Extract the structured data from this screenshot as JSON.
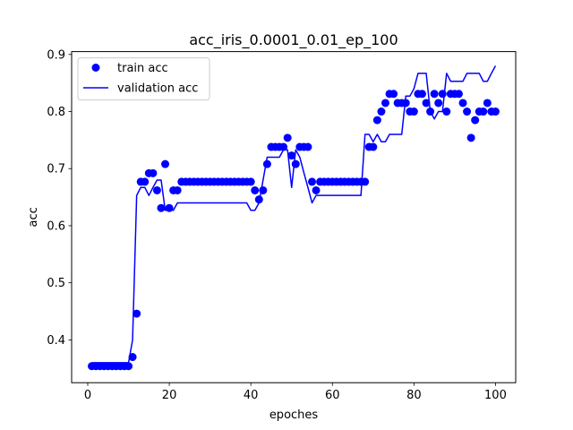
{
  "chart_data": {
    "type": "line",
    "title": "acc_iris_0.0001_0.01_ep_100",
    "xlabel": "epoches",
    "ylabel": "acc",
    "xlim": [
      -3.95,
      104.95
    ],
    "ylim": [
      0.325,
      0.905
    ],
    "xticks": [
      0,
      20,
      40,
      60,
      80,
      100
    ],
    "yticks": [
      0.4,
      0.5,
      0.6,
      0.7,
      0.8,
      0.9
    ],
    "xtick_labels": [
      "0",
      "20",
      "40",
      "60",
      "80",
      "100"
    ],
    "ytick_labels": [
      "0.4",
      "0.5",
      "0.6",
      "0.7",
      "0.8",
      "0.9"
    ],
    "grid": false,
    "legend_position": "top-left",
    "x": [
      1,
      2,
      3,
      4,
      5,
      6,
      7,
      8,
      9,
      10,
      11,
      12,
      13,
      14,
      15,
      16,
      17,
      18,
      19,
      20,
      21,
      22,
      23,
      24,
      25,
      26,
      27,
      28,
      29,
      30,
      31,
      32,
      33,
      34,
      35,
      36,
      37,
      38,
      39,
      40,
      41,
      42,
      43,
      44,
      45,
      46,
      47,
      48,
      49,
      50,
      51,
      52,
      53,
      54,
      55,
      56,
      57,
      58,
      59,
      60,
      61,
      62,
      63,
      64,
      65,
      66,
      67,
      68,
      69,
      70,
      71,
      72,
      73,
      74,
      75,
      76,
      77,
      78,
      79,
      80,
      81,
      82,
      83,
      84,
      85,
      86,
      87,
      88,
      89,
      90,
      91,
      92,
      93,
      94,
      95,
      96,
      97,
      98,
      99,
      100
    ],
    "series": [
      {
        "name": "train acc",
        "style": "markers",
        "color": "#0000ff",
        "values": [
          0.354,
          0.354,
          0.354,
          0.354,
          0.354,
          0.354,
          0.354,
          0.354,
          0.354,
          0.354,
          0.37,
          0.446,
          0.677,
          0.677,
          0.692,
          0.692,
          0.662,
          0.631,
          0.708,
          0.631,
          0.662,
          0.662,
          0.677,
          0.677,
          0.677,
          0.677,
          0.677,
          0.677,
          0.677,
          0.677,
          0.677,
          0.677,
          0.677,
          0.677,
          0.677,
          0.677,
          0.677,
          0.677,
          0.677,
          0.677,
          0.662,
          0.646,
          0.662,
          0.708,
          0.738,
          0.738,
          0.738,
          0.738,
          0.754,
          0.723,
          0.708,
          0.738,
          0.738,
          0.738,
          0.677,
          0.662,
          0.677,
          0.677,
          0.677,
          0.677,
          0.677,
          0.677,
          0.677,
          0.677,
          0.677,
          0.677,
          0.677,
          0.677,
          0.738,
          0.738,
          0.785,
          0.8,
          0.815,
          0.831,
          0.831,
          0.815,
          0.815,
          0.815,
          0.8,
          0.8,
          0.831,
          0.831,
          0.815,
          0.8,
          0.831,
          0.815,
          0.831,
          0.8,
          0.831,
          0.831,
          0.831,
          0.815,
          0.8,
          0.754,
          0.785,
          0.8,
          0.8,
          0.815,
          0.8,
          0.8
        ]
      },
      {
        "name": "validation acc",
        "style": "line",
        "color": "#0000ff",
        "values": [
          0.36,
          0.36,
          0.36,
          0.36,
          0.36,
          0.36,
          0.36,
          0.36,
          0.36,
          0.36,
          0.4,
          0.653,
          0.667,
          0.667,
          0.653,
          0.667,
          0.68,
          0.68,
          0.627,
          0.627,
          0.627,
          0.64,
          0.64,
          0.64,
          0.64,
          0.64,
          0.64,
          0.64,
          0.64,
          0.64,
          0.64,
          0.64,
          0.64,
          0.64,
          0.64,
          0.64,
          0.64,
          0.64,
          0.64,
          0.627,
          0.627,
          0.64,
          0.68,
          0.72,
          0.72,
          0.72,
          0.72,
          0.733,
          0.733,
          0.667,
          0.733,
          0.72,
          0.693,
          0.667,
          0.64,
          0.653,
          0.653,
          0.653,
          0.653,
          0.653,
          0.653,
          0.653,
          0.653,
          0.653,
          0.653,
          0.653,
          0.653,
          0.76,
          0.76,
          0.747,
          0.76,
          0.747,
          0.747,
          0.76,
          0.76,
          0.76,
          0.76,
          0.827,
          0.827,
          0.84,
          0.867,
          0.867,
          0.867,
          0.8,
          0.787,
          0.8,
          0.8,
          0.867,
          0.853,
          0.853,
          0.853,
          0.853,
          0.867,
          0.867,
          0.867,
          0.867,
          0.853,
          0.853,
          0.867,
          0.88
        ]
      }
    ]
  }
}
